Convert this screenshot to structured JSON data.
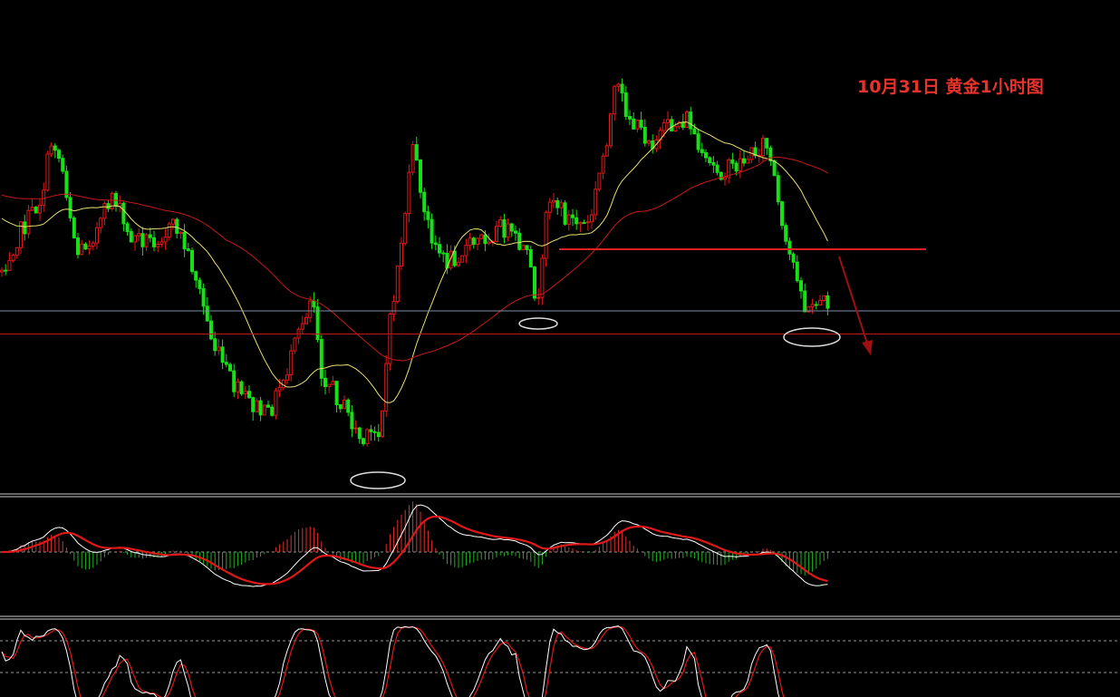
{
  "header": {
    "title": "10月31日 黄金1小时图"
  }
}
